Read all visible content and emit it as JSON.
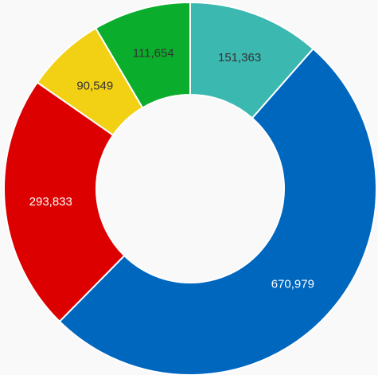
{
  "chart_data": {
    "type": "pie",
    "categories": [
      "",
      "",
      "",
      "",
      ""
    ],
    "values": [
      151363,
      670979,
      293833,
      90549,
      111654
    ],
    "value_labels": [
      "151,363",
      "670,979",
      "293,833",
      "90,549",
      "111,654"
    ],
    "colors": [
      "#3bb8b0",
      "#0067bf",
      "#dd0000",
      "#f2d013",
      "#0bad2c"
    ],
    "label_colors": [
      "#333333",
      "#ffffff",
      "#ffffff",
      "#333333",
      "#333333"
    ],
    "donut": true,
    "start_angle_deg": 0,
    "direction": "clockwise",
    "legend": "none"
  }
}
